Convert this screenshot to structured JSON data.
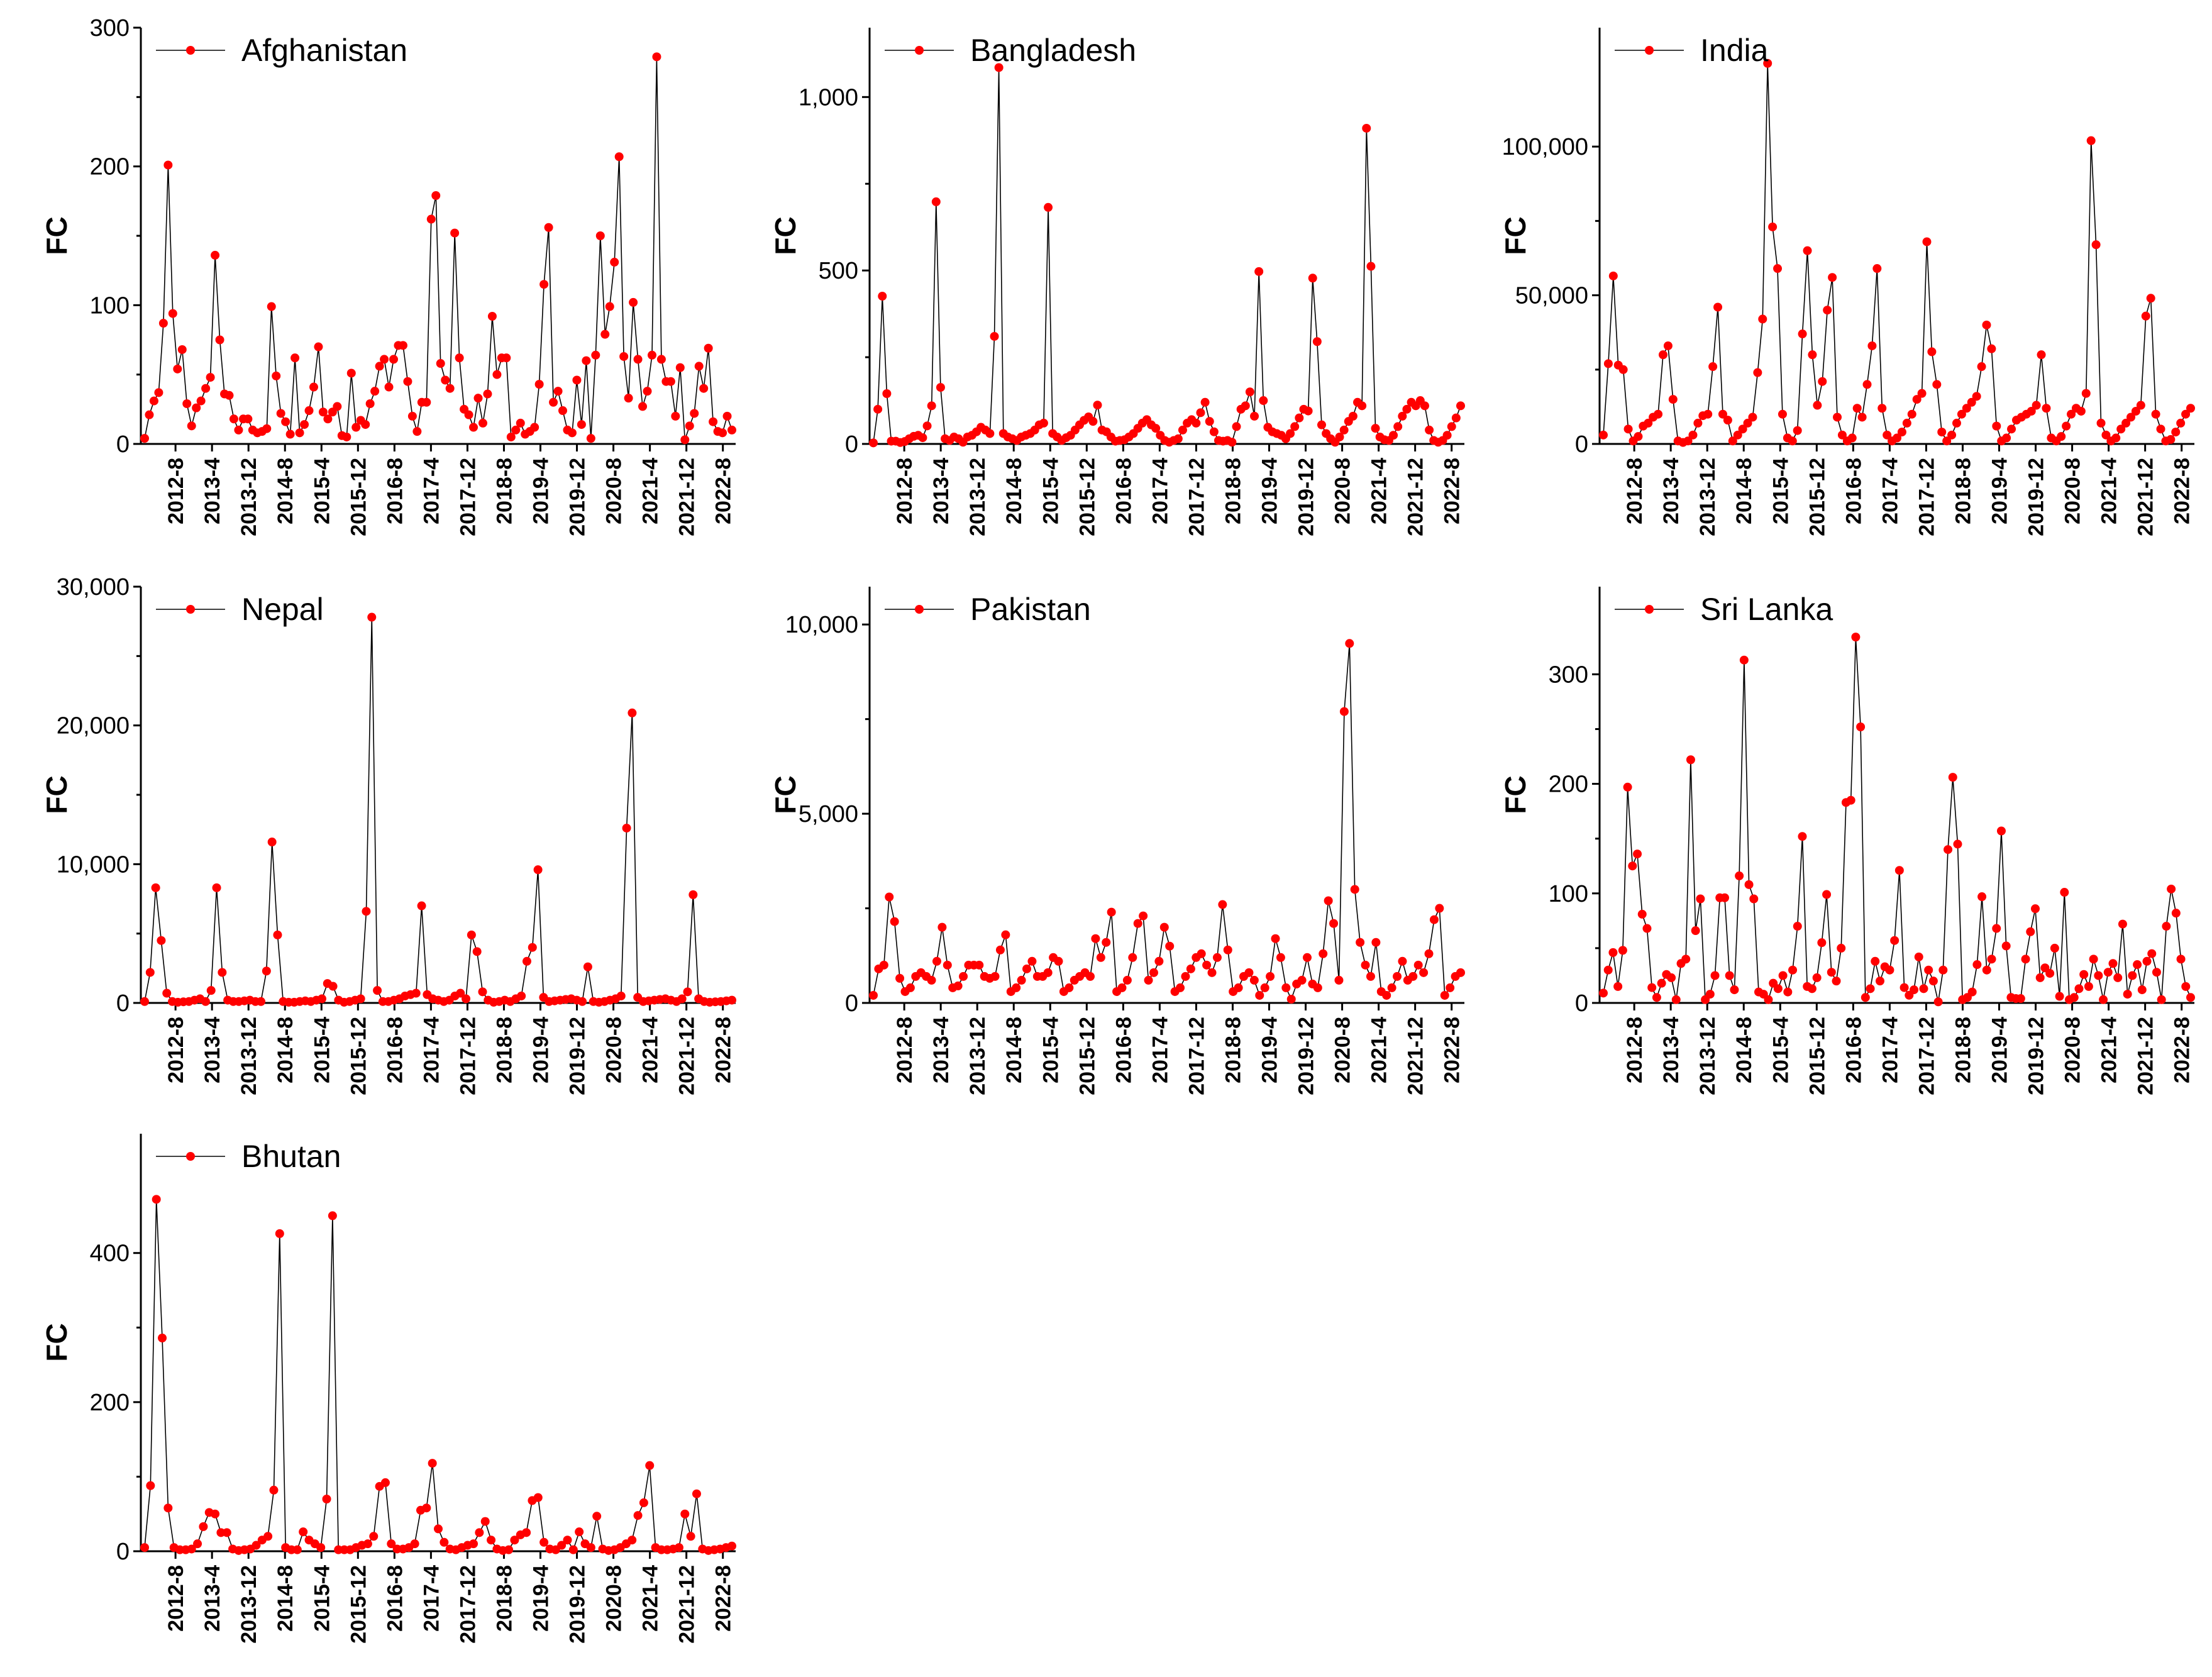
{
  "style": {
    "marker_color": "#ff0000",
    "line_color": "#000000",
    "axis_color": "#000000"
  },
  "chart_data": [
    {
      "type": "line",
      "title": "Afghanistan",
      "legend": "Afghanistan",
      "legend_position": "top-left",
      "ylabel": "FC",
      "ylim": [
        0,
        300
      ],
      "yticks": [
        0,
        100,
        200,
        300
      ],
      "yticklabels": [
        "0",
        "100",
        "200",
        "300"
      ],
      "xlabels": [
        "2012-8",
        "2013-4",
        "2013-12",
        "2014-8",
        "2015-4",
        "2015-12",
        "2016-8",
        "2017-4",
        "2017-12",
        "2018-8",
        "2019-4",
        "2019-12",
        "2020-8",
        "2021-4",
        "2021-12",
        "2022-8"
      ],
      "values": [
        4,
        21,
        31,
        37,
        87,
        201,
        94,
        54,
        68,
        29,
        13,
        26,
        31,
        40,
        48,
        136,
        75,
        36,
        35,
        18,
        10,
        18,
        18,
        10,
        8,
        9,
        11,
        99,
        49,
        22,
        16,
        7,
        62,
        8,
        14,
        24,
        41,
        70,
        23,
        18,
        23,
        27,
        6,
        5,
        51,
        12,
        17,
        14,
        29,
        38,
        56,
        61,
        41,
        61,
        71,
        71,
        45,
        20,
        9,
        30,
        30,
        162,
        179,
        58,
        46,
        40,
        152,
        62,
        25,
        21,
        12,
        33,
        15,
        36,
        92,
        50,
        62,
        62,
        5,
        10,
        15,
        7,
        9,
        12,
        43,
        115,
        156,
        30,
        38,
        24,
        10,
        8,
        46,
        14,
        60,
        4,
        64,
        150,
        79,
        99,
        131,
        207,
        63,
        33,
        102,
        61,
        27,
        38,
        64,
        279,
        61,
        45,
        45,
        20,
        55,
        3,
        13,
        22,
        56,
        40,
        69,
        16,
        9,
        8,
        20,
        10
      ]
    },
    {
      "type": "line",
      "title": "Bangladesh",
      "legend": "Bangladesh",
      "legend_position": "top-left",
      "ylabel": "FC",
      "ylim": [
        0,
        1200
      ],
      "yticks": [
        0,
        500,
        1000
      ],
      "yticklabels": [
        "0",
        "500",
        "1,000"
      ],
      "xlabels": [
        "2012-8",
        "2013-4",
        "2013-12",
        "2014-8",
        "2015-4",
        "2015-12",
        "2016-8",
        "2017-4",
        "2017-12",
        "2018-8",
        "2019-4",
        "2019-12",
        "2020-8",
        "2021-4",
        "2021-12",
        "2022-8"
      ],
      "values": [
        3,
        100,
        426,
        145,
        8,
        8,
        4,
        7,
        15,
        22,
        25,
        18,
        52,
        110,
        698,
        163,
        15,
        10,
        20,
        15,
        5,
        20,
        25,
        35,
        48,
        40,
        30,
        310,
        1085,
        30,
        20,
        15,
        10,
        20,
        25,
        30,
        40,
        55,
        60,
        682,
        30,
        20,
        10,
        18,
        25,
        40,
        55,
        68,
        78,
        65,
        112,
        40,
        35,
        20,
        8,
        10,
        12,
        20,
        30,
        45,
        60,
        70,
        55,
        45,
        25,
        10,
        5,
        10,
        15,
        40,
        60,
        70,
        60,
        90,
        120,
        65,
        35,
        10,
        8,
        10,
        5,
        50,
        100,
        110,
        150,
        80,
        497,
        125,
        48,
        35,
        30,
        25,
        15,
        30,
        50,
        75,
        100,
        95,
        478,
        295,
        55,
        30,
        15,
        5,
        20,
        40,
        65,
        80,
        120,
        110,
        910,
        512,
        45,
        20,
        12,
        10,
        25,
        50,
        80,
        100,
        120,
        110,
        125,
        110,
        40,
        10,
        5,
        10,
        25,
        50,
        75,
        110
      ]
    },
    {
      "type": "line",
      "title": "India",
      "legend": "India",
      "legend_position": "top-left",
      "ylabel": "FC",
      "ylim": [
        0,
        140000
      ],
      "yticks": [
        0,
        50000,
        100000
      ],
      "yticklabels": [
        "0",
        "50,000",
        "100,000"
      ],
      "xlabels": [
        "2012-8",
        "2013-4",
        "2013-12",
        "2014-8",
        "2015-4",
        "2015-12",
        "2016-8",
        "2017-4",
        "2017-12",
        "2018-8",
        "2019-4",
        "2019-12",
        "2020-8",
        "2021-4",
        "2021-12",
        "2022-8"
      ],
      "values": [
        3000,
        27000,
        56500,
        26500,
        25000,
        5000,
        1000,
        2500,
        6000,
        7000,
        9000,
        10000,
        30000,
        33000,
        15000,
        1000,
        500,
        1000,
        3000,
        7000,
        9500,
        10000,
        26000,
        46000,
        10000,
        8000,
        1000,
        3000,
        5000,
        7000,
        9000,
        24000,
        42000,
        128000,
        73000,
        59000,
        10000,
        2000,
        1000,
        4500,
        37000,
        65000,
        30000,
        13000,
        21000,
        45000,
        56000,
        9000,
        3000,
        1000,
        2000,
        12000,
        9000,
        20000,
        33000,
        59000,
        12000,
        3000,
        1000,
        2000,
        4000,
        7000,
        10000,
        15000,
        17000,
        68000,
        31000,
        20000,
        4000,
        1000,
        3000,
        7000,
        10000,
        12000,
        14000,
        16000,
        26000,
        40000,
        32000,
        6000,
        1000,
        2000,
        5000,
        8000,
        9000,
        10000,
        11000,
        13000,
        30000,
        12000,
        2000,
        1000,
        2500,
        6000,
        10000,
        12000,
        11000,
        17000,
        102000,
        67000,
        7000,
        3000,
        1000,
        2000,
        5000,
        7000,
        9000,
        11000,
        13000,
        43000,
        49000,
        10000,
        5000,
        1000,
        1500,
        4000,
        7000,
        10000,
        12000
      ]
    },
    {
      "type": "line",
      "title": "Nepal",
      "legend": "Nepal",
      "legend_position": "top-left",
      "ylabel": "FC",
      "ylim": [
        0,
        30000
      ],
      "yticks": [
        0,
        10000,
        20000,
        30000
      ],
      "yticklabels": [
        "0",
        "10,000",
        "20,000",
        "30,000"
      ],
      "xlabels": [
        "2012-8",
        "2013-4",
        "2013-12",
        "2014-8",
        "2015-4",
        "2015-12",
        "2016-8",
        "2017-4",
        "2017-12",
        "2018-8",
        "2019-4",
        "2019-12",
        "2020-8",
        "2021-4",
        "2021-12",
        "2022-8"
      ],
      "values": [
        100,
        2200,
        8300,
        4500,
        700,
        100,
        50,
        80,
        100,
        200,
        300,
        100,
        900,
        8300,
        2200,
        200,
        100,
        100,
        150,
        200,
        100,
        100,
        2300,
        11600,
        4900,
        100,
        50,
        50,
        100,
        150,
        100,
        200,
        300,
        1400,
        1200,
        200,
        50,
        100,
        200,
        300,
        6600,
        27800,
        900,
        100,
        100,
        200,
        300,
        500,
        600,
        700,
        7000,
        600,
        300,
        200,
        100,
        200,
        500,
        700,
        300,
        4900,
        3700,
        800,
        200,
        50,
        100,
        200,
        100,
        300,
        500,
        3000,
        4000,
        9600,
        400,
        100,
        150,
        200,
        250,
        300,
        200,
        100,
        2600,
        100,
        50,
        100,
        200,
        300,
        500,
        12600,
        20900,
        400,
        100,
        150,
        200,
        250,
        300,
        200,
        100,
        300,
        800,
        7800,
        300,
        100,
        50,
        80,
        100,
        150,
        200
      ]
    },
    {
      "type": "line",
      "title": "Pakistan",
      "legend": "Pakistan",
      "legend_position": "top-left",
      "ylabel": "FC",
      "ylim": [
        0,
        11000
      ],
      "yticks": [
        0,
        5000,
        10000
      ],
      "yticklabels": [
        "0",
        "5,000",
        "10,000"
      ],
      "xlabels": [
        "2012-8",
        "2013-4",
        "2013-12",
        "2014-8",
        "2015-4",
        "2015-12",
        "2016-8",
        "2017-4",
        "2017-12",
        "2018-8",
        "2019-4",
        "2019-12",
        "2020-8",
        "2021-4",
        "2021-12",
        "2022-8"
      ],
      "values": [
        200,
        900,
        1000,
        2800,
        2150,
        650,
        300,
        400,
        700,
        800,
        700,
        600,
        1100,
        2000,
        1000,
        400,
        450,
        700,
        1000,
        1000,
        1000,
        700,
        650,
        700,
        1400,
        1800,
        300,
        400,
        600,
        900,
        1100,
        700,
        700,
        800,
        1200,
        1100,
        300,
        400,
        600,
        700,
        800,
        700,
        1700,
        1200,
        1600,
        2400,
        300,
        400,
        600,
        1200,
        2100,
        2300,
        600,
        800,
        1100,
        2000,
        1500,
        300,
        400,
        700,
        900,
        1200,
        1300,
        1000,
        800,
        1200,
        2600,
        1400,
        300,
        400,
        700,
        800,
        600,
        200,
        400,
        700,
        1700,
        1200,
        400,
        100,
        500,
        600,
        1200,
        500,
        400,
        1300,
        2700,
        2100,
        600,
        7700,
        9500,
        3000,
        1600,
        1000,
        700,
        1600,
        300,
        200,
        400,
        700,
        1100,
        600,
        700,
        1000,
        800,
        1300,
        2200,
        2500,
        200,
        400,
        700,
        800
      ]
    },
    {
      "type": "line",
      "title": "Sri Lanka",
      "legend": "Sri Lanka",
      "legend_position": "top-left",
      "ylabel": "FC",
      "ylim": [
        0,
        380
      ],
      "yticks": [
        0,
        100,
        200,
        300
      ],
      "yticklabels": [
        "0",
        "100",
        "200",
        "300"
      ],
      "xlabels": [
        "2012-8",
        "2013-4",
        "2013-12",
        "2014-8",
        "2015-4",
        "2015-12",
        "2016-8",
        "2017-4",
        "2017-12",
        "2018-8",
        "2019-4",
        "2019-12",
        "2020-8",
        "2021-4",
        "2021-12",
        "2022-8"
      ],
      "values": [
        9,
        30,
        46,
        15,
        48,
        197,
        125,
        136,
        81,
        68,
        14,
        5,
        18,
        26,
        23,
        3,
        36,
        40,
        222,
        66,
        95,
        3,
        8,
        25,
        96,
        96,
        25,
        12,
        116,
        313,
        108,
        95,
        10,
        8,
        3,
        18,
        13,
        25,
        10,
        30,
        70,
        152,
        15,
        13,
        23,
        55,
        99,
        28,
        20,
        50,
        183,
        185,
        334,
        252,
        5,
        13,
        38,
        20,
        33,
        30,
        57,
        121,
        14,
        7,
        12,
        42,
        13,
        30,
        20,
        1,
        30,
        140,
        206,
        145,
        3,
        5,
        10,
        35,
        97,
        30,
        40,
        68,
        157,
        52,
        5,
        4,
        4,
        40,
        65,
        86,
        23,
        32,
        27,
        50,
        6,
        101,
        3,
        5,
        13,
        26,
        15,
        40,
        25,
        3,
        28,
        36,
        23,
        72,
        8,
        25,
        35,
        12,
        38,
        45,
        28,
        3,
        70,
        104,
        82,
        40,
        15,
        5
      ]
    },
    {
      "type": "line",
      "title": "Bhutan",
      "legend": "Bhutan",
      "legend_position": "top-left",
      "ylabel": "FC",
      "ylim": [
        0,
        560
      ],
      "yticks": [
        0,
        200,
        400
      ],
      "yticklabels": [
        "0",
        "200",
        "400"
      ],
      "xlabels": [
        "2012-8",
        "2013-4",
        "2013-12",
        "2014-8",
        "2015-4",
        "2015-12",
        "2016-8",
        "2017-4",
        "2017-12",
        "2018-8",
        "2019-4",
        "2019-12",
        "2020-8",
        "2021-4",
        "2021-12",
        "2022-8"
      ],
      "values": [
        5,
        88,
        472,
        286,
        58,
        5,
        2,
        2,
        3,
        10,
        33,
        52,
        50,
        25,
        25,
        3,
        1,
        2,
        3,
        8,
        15,
        20,
        82,
        426,
        5,
        2,
        2,
        26,
        15,
        10,
        5,
        70,
        450,
        2,
        2,
        2,
        5,
        8,
        10,
        20,
        87,
        92,
        10,
        3,
        3,
        5,
        10,
        55,
        58,
        118,
        30,
        12,
        3,
        2,
        5,
        8,
        10,
        25,
        40,
        15,
        3,
        1,
        2,
        15,
        22,
        25,
        68,
        72,
        12,
        3,
        2,
        8,
        15,
        2,
        26,
        10,
        5,
        47,
        3,
        1,
        2,
        5,
        10,
        15,
        48,
        65,
        115,
        5,
        2,
        2,
        3,
        5,
        50,
        20,
        77,
        3,
        1,
        2,
        3,
        5,
        7
      ]
    }
  ]
}
